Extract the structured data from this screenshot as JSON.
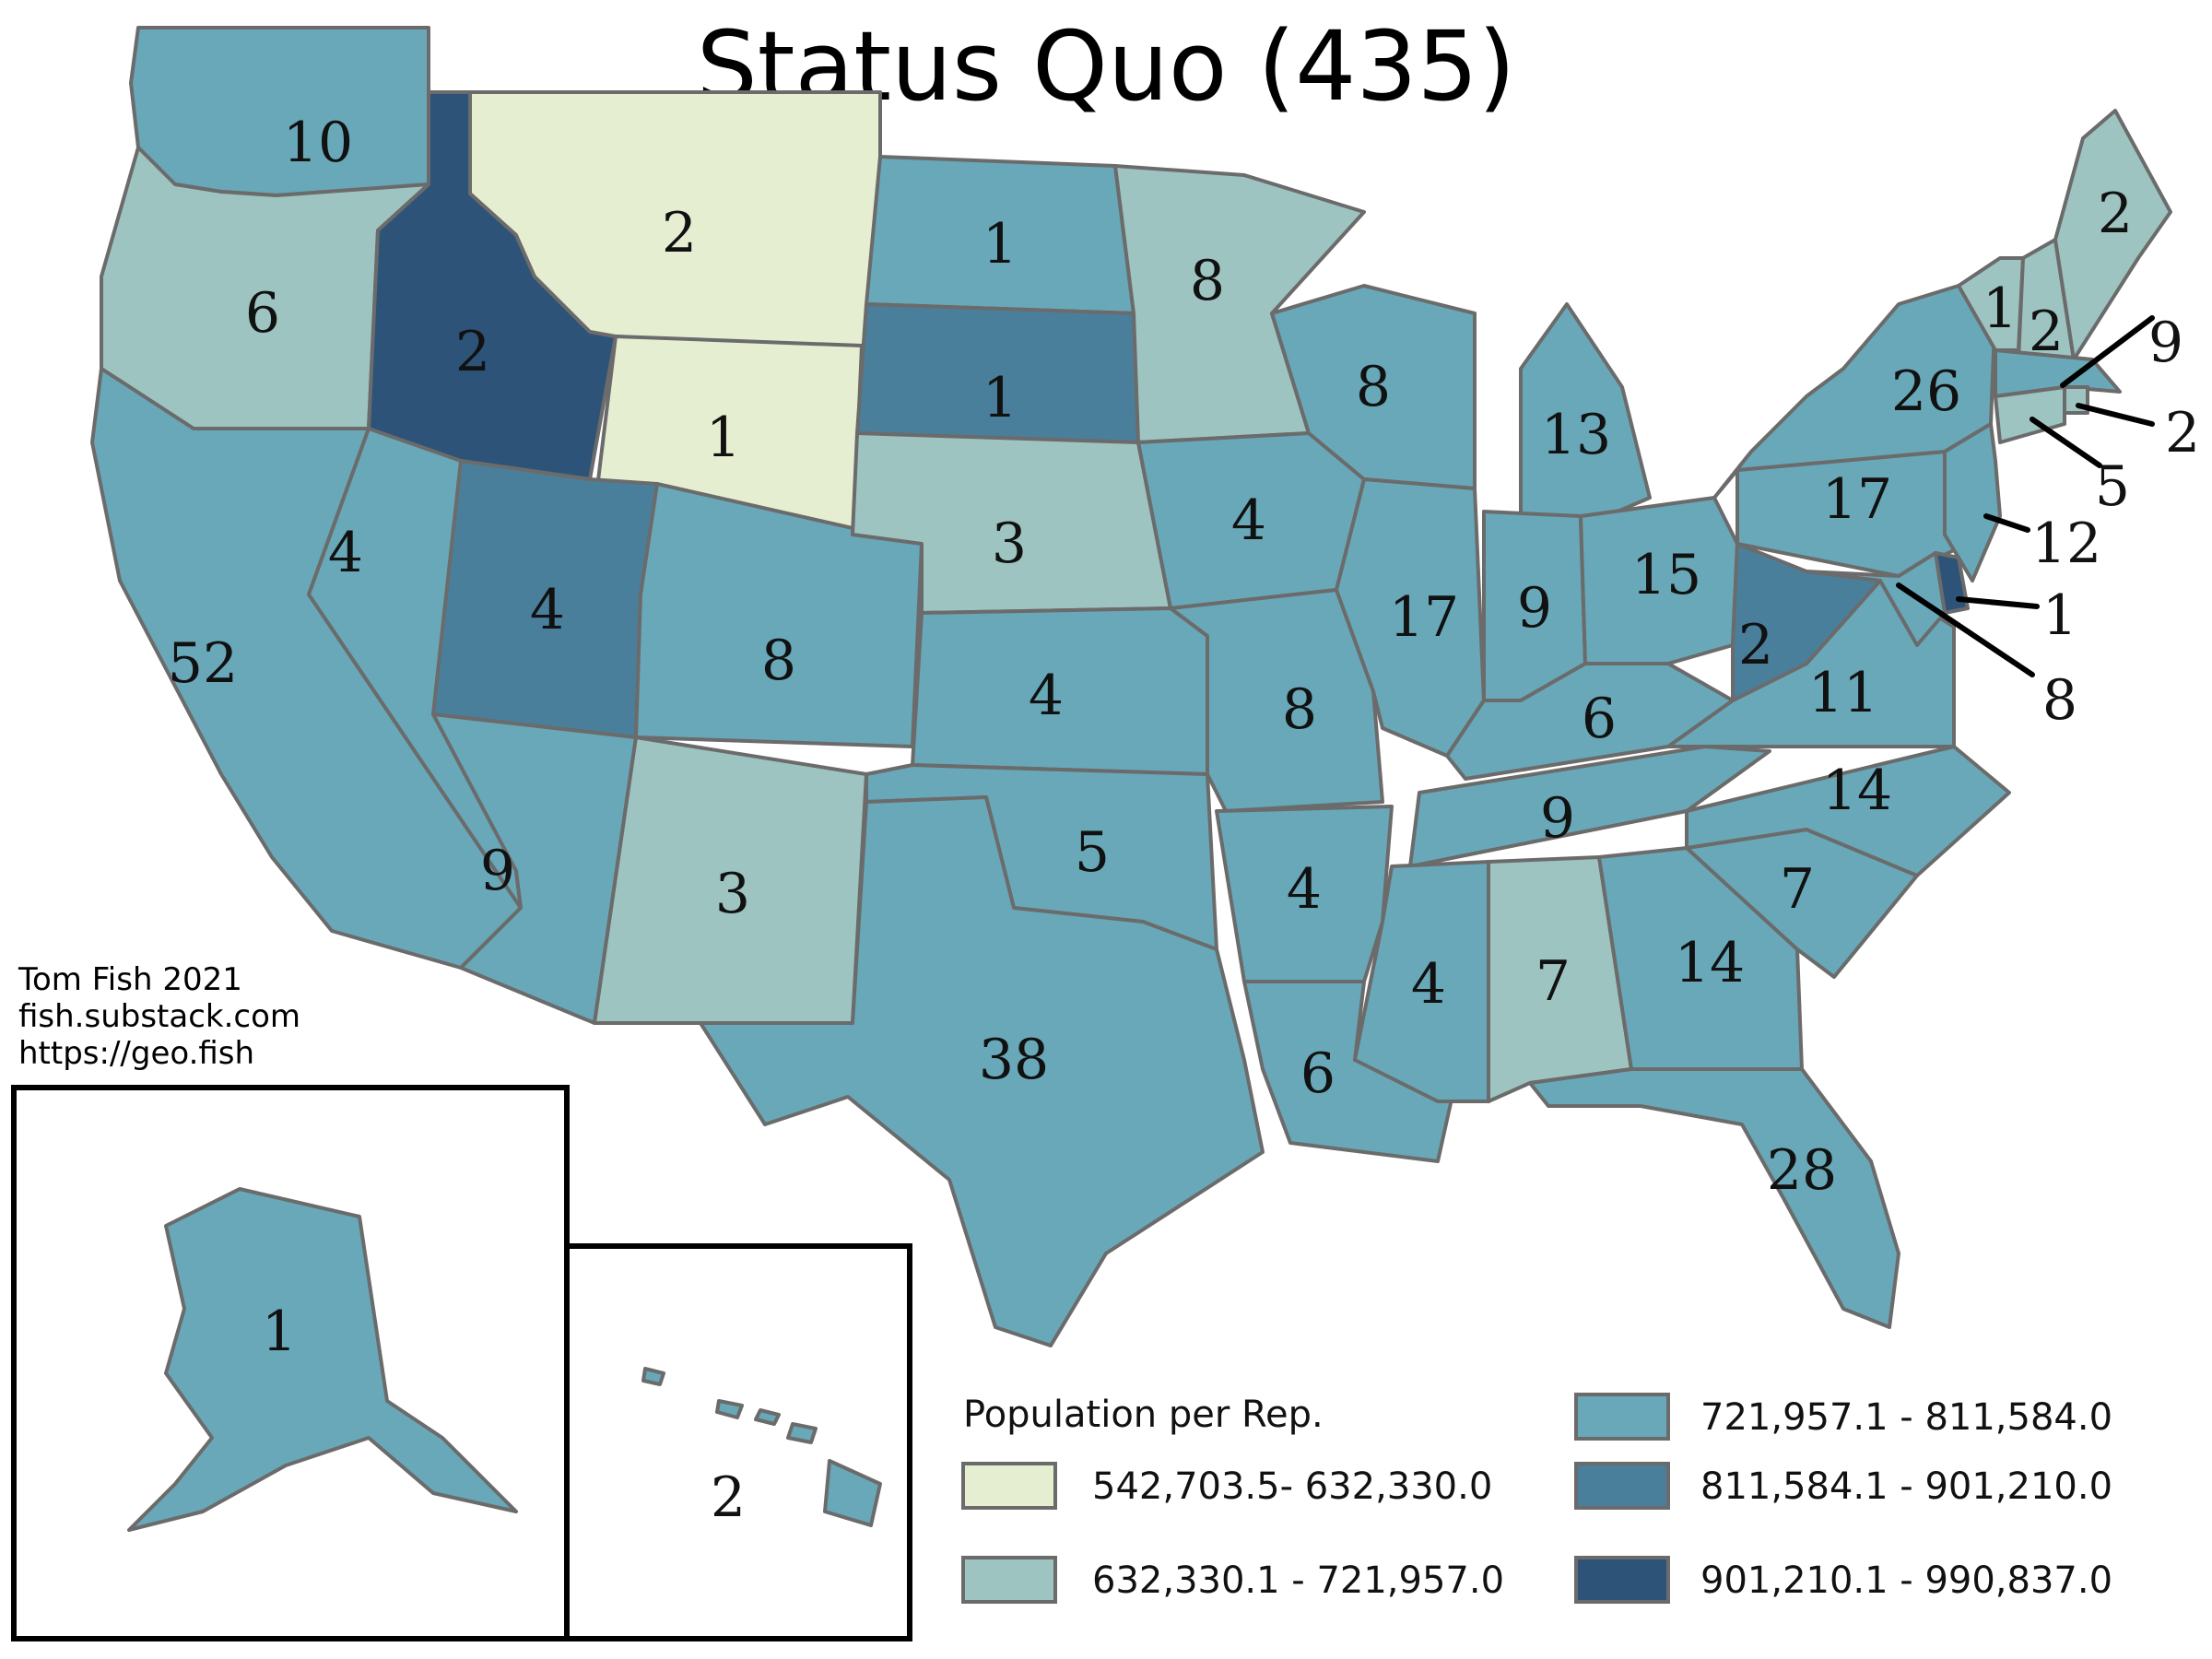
{
  "title": "Status Quo (435)",
  "credits": [
    "Tom Fish 2021",
    "fish.substack.com",
    "https://geo.fish"
  ],
  "legend": {
    "title": "Population per Rep.",
    "classes": [
      {
        "label": "542,703.5- 632,330.0",
        "color": "#e6eed2"
      },
      {
        "label": "632,330.1 - 721,957.0",
        "color": "#9dc4c0"
      },
      {
        "label": "721,957.1 - 811,584.0",
        "color": "#68a8b8"
      },
      {
        "label": "811,584.1 - 901,210.0",
        "color": "#4a7f9c"
      },
      {
        "label": "901,210.1 - 990,837.0",
        "color": "#2d5478"
      }
    ]
  },
  "states": [
    {
      "name": "Washington",
      "seats": "10",
      "cls": 2
    },
    {
      "name": "Oregon",
      "seats": "6",
      "cls": 1
    },
    {
      "name": "California",
      "seats": "52",
      "cls": 2
    },
    {
      "name": "Nevada",
      "seats": "4",
      "cls": 2
    },
    {
      "name": "Idaho",
      "seats": "2",
      "cls": 4
    },
    {
      "name": "Montana",
      "seats": "2",
      "cls": 0
    },
    {
      "name": "Wyoming",
      "seats": "1",
      "cls": 0
    },
    {
      "name": "Utah",
      "seats": "4",
      "cls": 3
    },
    {
      "name": "Arizona",
      "seats": "9",
      "cls": 2
    },
    {
      "name": "Colorado",
      "seats": "8",
      "cls": 2
    },
    {
      "name": "New Mexico",
      "seats": "3",
      "cls": 1
    },
    {
      "name": "North Dakota",
      "seats": "1",
      "cls": 2
    },
    {
      "name": "South Dakota",
      "seats": "1",
      "cls": 3
    },
    {
      "name": "Nebraska",
      "seats": "3",
      "cls": 1
    },
    {
      "name": "Kansas",
      "seats": "4",
      "cls": 2
    },
    {
      "name": "Oklahoma",
      "seats": "5",
      "cls": 2
    },
    {
      "name": "Texas",
      "seats": "38",
      "cls": 2
    },
    {
      "name": "Minnesota",
      "seats": "8",
      "cls": 1
    },
    {
      "name": "Iowa",
      "seats": "4",
      "cls": 2
    },
    {
      "name": "Missouri",
      "seats": "8",
      "cls": 2
    },
    {
      "name": "Arkansas",
      "seats": "4",
      "cls": 2
    },
    {
      "name": "Louisiana",
      "seats": "6",
      "cls": 2
    },
    {
      "name": "Wisconsin",
      "seats": "8",
      "cls": 2
    },
    {
      "name": "Illinois",
      "seats": "17",
      "cls": 2
    },
    {
      "name": "Michigan",
      "seats": "13",
      "cls": 2
    },
    {
      "name": "Indiana",
      "seats": "9",
      "cls": 2
    },
    {
      "name": "Ohio",
      "seats": "15",
      "cls": 2
    },
    {
      "name": "Kentucky",
      "seats": "6",
      "cls": 2
    },
    {
      "name": "Tennessee",
      "seats": "9",
      "cls": 2
    },
    {
      "name": "Mississippi",
      "seats": "4",
      "cls": 2
    },
    {
      "name": "Alabama",
      "seats": "7",
      "cls": 1
    },
    {
      "name": "Georgia",
      "seats": "14",
      "cls": 2
    },
    {
      "name": "Florida",
      "seats": "28",
      "cls": 2
    },
    {
      "name": "South Carolina",
      "seats": "7",
      "cls": 2
    },
    {
      "name": "North Carolina",
      "seats": "14",
      "cls": 2
    },
    {
      "name": "Virginia",
      "seats": "11",
      "cls": 2
    },
    {
      "name": "West Virginia",
      "seats": "2",
      "cls": 3
    },
    {
      "name": "Pennsylvania",
      "seats": "17",
      "cls": 2
    },
    {
      "name": "New York",
      "seats": "26",
      "cls": 2
    },
    {
      "name": "Vermont",
      "seats": "1",
      "cls": 1
    },
    {
      "name": "New Hampshire",
      "seats": "2",
      "cls": 1
    },
    {
      "name": "Maine",
      "seats": "2",
      "cls": 1
    },
    {
      "name": "Massachusetts",
      "seats": "9",
      "cls": 2
    },
    {
      "name": "Rhode Island",
      "seats": "2",
      "cls": 1
    },
    {
      "name": "Connecticut",
      "seats": "5",
      "cls": 1
    },
    {
      "name": "New Jersey",
      "seats": "12",
      "cls": 2
    },
    {
      "name": "Delaware",
      "seats": "1",
      "cls": 4
    },
    {
      "name": "Maryland",
      "seats": "8",
      "cls": 2
    },
    {
      "name": "Alaska",
      "seats": "1",
      "cls": 2
    },
    {
      "name": "Hawaii",
      "seats": "2",
      "cls": 2
    }
  ]
}
